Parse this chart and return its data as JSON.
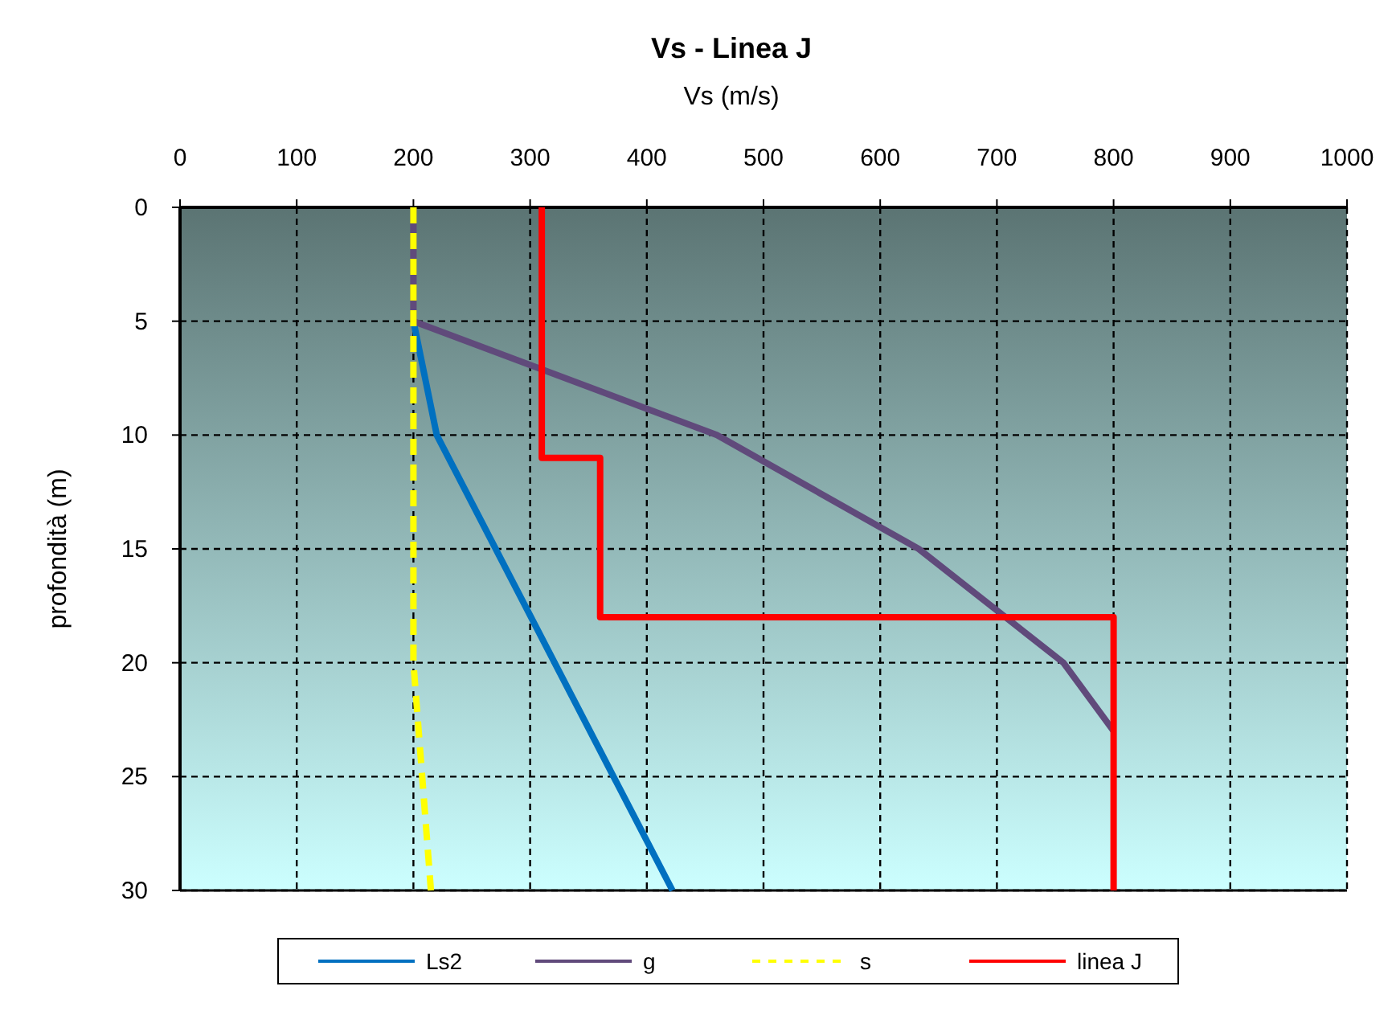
{
  "chart_data": {
    "type": "line",
    "title": "Vs - Linea J",
    "xlabel": "Vs (m/s)",
    "ylabel": "profondità (m)",
    "xlim": [
      0,
      1000
    ],
    "xticks": [
      0,
      100,
      200,
      300,
      400,
      500,
      600,
      700,
      800,
      900,
      1000
    ],
    "ylim": [
      30,
      0
    ],
    "yticks": [
      0,
      5,
      10,
      15,
      20,
      25,
      30
    ],
    "grid": true,
    "legend": "bottom",
    "marker": "none",
    "series": [
      {
        "name": "Ls2",
        "color": "#0070c0",
        "x": [
          200,
          220,
          422
        ],
        "values": [
          5,
          10,
          30
        ]
      },
      {
        "name": "g",
        "color": "#604a7b",
        "x": [
          200,
          200,
          460,
          633,
          757,
          800
        ],
        "values": [
          0,
          5,
          10,
          15,
          20,
          23
        ]
      },
      {
        "name": "s",
        "color": "#ffff00",
        "line_style": "dashed",
        "x": [
          200,
          200,
          215
        ],
        "values": [
          0,
          20,
          30
        ]
      },
      {
        "name": "linea J",
        "color": "#ff0000",
        "x": [
          310,
          310,
          360,
          360,
          800,
          800
        ],
        "values": [
          0,
          11,
          11,
          18,
          18,
          30
        ]
      }
    ]
  }
}
